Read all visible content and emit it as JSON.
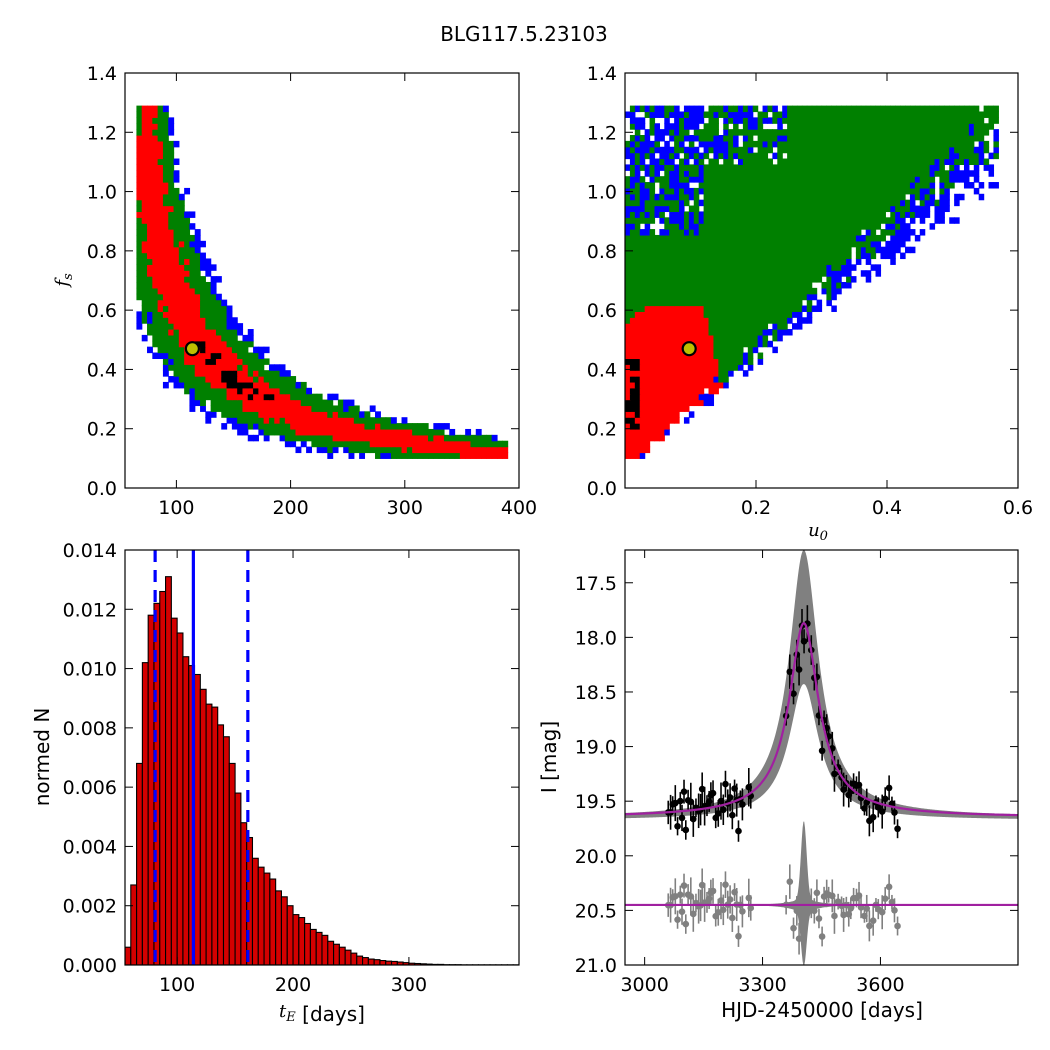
{
  "figure": {
    "title": "BLG117.5.23103"
  },
  "colors": {
    "blue": "#0000ff",
    "green": "#008000",
    "red": "#ff0000",
    "black": "#000000",
    "marker": "#bfbf00",
    "gray": "#808080",
    "purple": "#a020a0",
    "histfill": "#d40000"
  },
  "chart_data": [
    {
      "type": "heatmap",
      "id": "tE-fs",
      "xlabel": "",
      "ylabel": "f_s",
      "xlim": [
        55,
        400
      ],
      "ylim": [
        0.0,
        1.4
      ],
      "xticks": [
        "100",
        "200",
        "300",
        "400"
      ],
      "yticks": [
        "0.0",
        "0.2",
        "0.4",
        "0.6",
        "0.8",
        "1.0",
        "1.2",
        "1.4"
      ],
      "regions": [
        "blue",
        "green",
        "red",
        "black"
      ],
      "best_fit": {
        "x": 114,
        "y": 0.47
      }
    },
    {
      "type": "heatmap",
      "id": "u0-fs",
      "xlabel": "u_0",
      "ylabel": "",
      "xlim": [
        0.0,
        0.6
      ],
      "ylim": [
        0.0,
        1.4
      ],
      "xticks": [
        "0.2",
        "0.4",
        "0.6"
      ],
      "yticks": [
        "0.0",
        "0.2",
        "0.4",
        "0.6",
        "0.8",
        "1.0",
        "1.2",
        "1.4"
      ],
      "regions": [
        "blue",
        "green",
        "red",
        "black"
      ],
      "best_fit": {
        "x": 0.098,
        "y": 0.47
      }
    },
    {
      "type": "bar",
      "id": "tE-hist",
      "xlabel_var": "t_E",
      "xlabel_unit": " [days]",
      "ylabel": "normed N",
      "xlim": [
        55,
        395
      ],
      "ylim": [
        0.0,
        0.014
      ],
      "xticks": [
        "100",
        "200",
        "300"
      ],
      "yticks": [
        "0.000",
        "0.002",
        "0.004",
        "0.006",
        "0.008",
        "0.010",
        "0.012",
        "0.014"
      ],
      "bin_start": 55,
      "bin_width": 5,
      "values": [
        0.0006,
        0.0027,
        0.0068,
        0.0102,
        0.0118,
        0.0122,
        0.0126,
        0.0131,
        0.0117,
        0.0112,
        0.0104,
        0.0101,
        0.0098,
        0.0093,
        0.0088,
        0.0087,
        0.0081,
        0.0077,
        0.0068,
        0.0058,
        0.0048,
        0.0043,
        0.0036,
        0.0033,
        0.0031,
        0.0029,
        0.0025,
        0.0023,
        0.002,
        0.0017,
        0.0016,
        0.0014,
        0.0012,
        0.0011,
        0.001,
        0.0008,
        0.0007,
        0.0006,
        0.0005,
        0.0004,
        0.0003,
        0.00025,
        0.0002,
        0.00018,
        0.00015,
        0.00013,
        0.00012,
        0.0001,
        8e-05,
        6e-05,
        5e-05,
        4e-05,
        3e-05,
        2e-05,
        2e-05,
        1e-05,
        1e-05,
        1e-05,
        5e-06,
        5e-06,
        5e-06,
        5e-06,
        5e-06,
        5e-06,
        5e-06,
        5e-06,
        5e-06,
        5e-06
      ],
      "vlines": [
        {
          "x": 81,
          "style": "dashed"
        },
        {
          "x": 114,
          "style": "solid"
        },
        {
          "x": 161,
          "style": "dashed"
        }
      ]
    },
    {
      "type": "scatter",
      "id": "lightcurve",
      "xlabel": "HJD-2450000 [days]",
      "ylabel": "I [mag]",
      "xlim": [
        2950,
        3950
      ],
      "ylim": [
        21.0,
        17.2
      ],
      "xticks": [
        "3000",
        "3300",
        "3600"
      ],
      "yticks": [
        "17.5",
        "18.0",
        "18.5",
        "19.0",
        "19.5",
        "20.0",
        "20.5",
        "21.0"
      ],
      "model": {
        "t0": 3405,
        "base": 19.65,
        "peak": 17.87,
        "width": 42
      },
      "residual_baseline": 20.45
    }
  ]
}
